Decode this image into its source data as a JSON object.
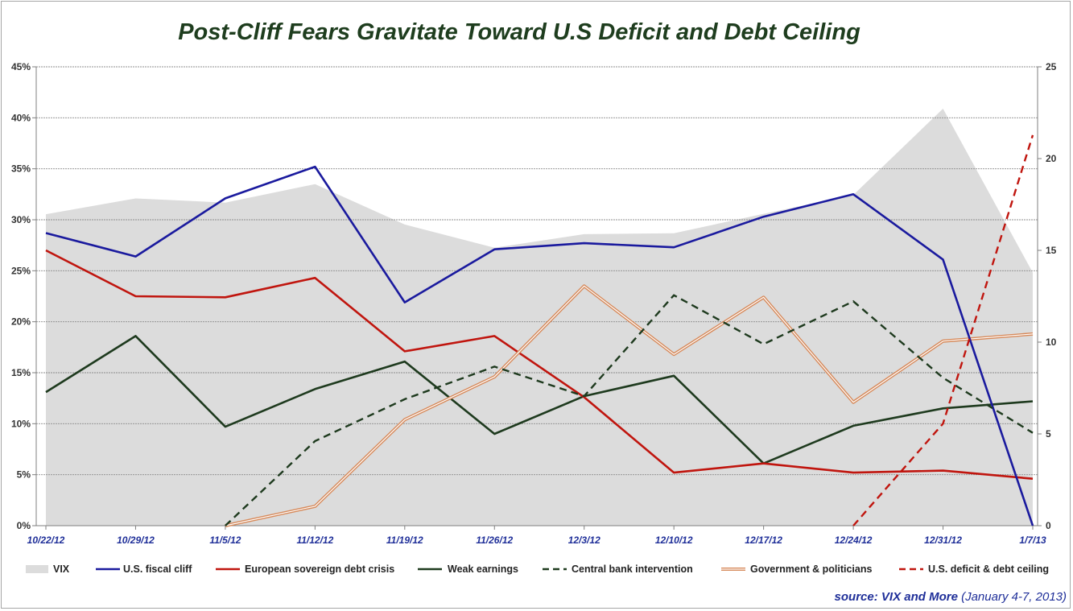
{
  "chart_data": {
    "type": "line",
    "title": "Post-Cliff Fears Gravitate Toward U.S Deficit and Debt Ceiling",
    "categories": [
      "10/22/12",
      "10/29/12",
      "11/5/12",
      "11/12/12",
      "11/19/12",
      "11/26/12",
      "12/3/12",
      "12/10/12",
      "12/17/12",
      "12/24/12",
      "12/31/12",
      "1/7/13"
    ],
    "y_left": {
      "min": 0,
      "max": 45,
      "step": 5,
      "format": "percent",
      "ticks": [
        "0%",
        "5%",
        "10%",
        "15%",
        "20%",
        "25%",
        "30%",
        "35%",
        "40%",
        "45%"
      ]
    },
    "y_right": {
      "min": 0,
      "max": 25,
      "step": 5,
      "ticks": [
        "0",
        "5",
        "10",
        "15",
        "20",
        "25"
      ]
    },
    "grid": true,
    "legend_position": "bottom",
    "series": [
      {
        "name": "VIX",
        "kind": "area",
        "axis": "right",
        "color": "#dcdcdc",
        "values": [
          16.97,
          17.83,
          17.6,
          18.61,
          16.41,
          15.14,
          15.88,
          15.93,
          16.99,
          18.02,
          22.72,
          13.79
        ]
      },
      {
        "name": "U.S. fiscal cliff",
        "kind": "line",
        "axis": "left",
        "color": "#1a1a9e",
        "values": [
          28.7,
          26.4,
          32.1,
          35.2,
          21.9,
          27.1,
          27.7,
          27.3,
          30.3,
          32.5,
          26.1,
          0
        ]
      },
      {
        "name": "European sovereign debt crisis",
        "kind": "line",
        "axis": "left",
        "color": "#c0150e",
        "values": [
          27.0,
          22.5,
          22.4,
          24.3,
          17.1,
          18.6,
          12.6,
          5.2,
          6.1,
          5.2,
          5.4,
          4.6
        ]
      },
      {
        "name": "Weak earnings",
        "kind": "line",
        "axis": "left",
        "color": "#1e3a1e",
        "values": [
          13.1,
          18.6,
          9.7,
          13.4,
          16.1,
          9.0,
          12.7,
          14.7,
          6.1,
          9.8,
          11.5,
          12.2
        ]
      },
      {
        "name": "Central bank intervention",
        "kind": "dashed",
        "axis": "left",
        "color": "#1e3a1e",
        "values": [
          null,
          null,
          0,
          8.3,
          12.4,
          15.6,
          12.7,
          22.6,
          17.8,
          22.0,
          14.5,
          9.1
        ]
      },
      {
        "name": "Government & politicians",
        "kind": "double",
        "axis": "left",
        "color": "#d6895a",
        "values": [
          null,
          null,
          0,
          1.9,
          10.4,
          14.6,
          23.5,
          16.8,
          22.4,
          12.1,
          18.1,
          18.8
        ]
      },
      {
        "name": "U.S. deficit & debt ceiling",
        "kind": "dashed",
        "axis": "left",
        "color": "#c0150e",
        "values": [
          null,
          null,
          null,
          null,
          null,
          null,
          null,
          null,
          null,
          0,
          10.0,
          38.3
        ]
      }
    ]
  },
  "source": {
    "label": "source:  VIX and More",
    "date": " (January 4-7, 2013)"
  }
}
